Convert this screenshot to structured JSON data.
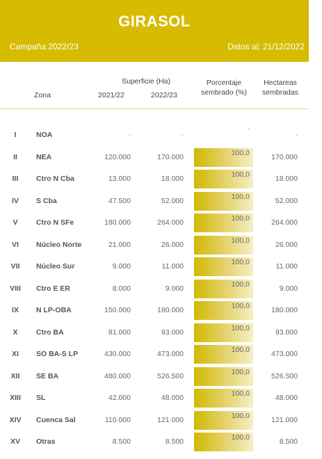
{
  "header": {
    "title": "GIRASOL",
    "campaign": "Campaña 2022/23",
    "date": "Datos al: 21/12/2022"
  },
  "columns": {
    "surface_group": "Superficie (Ha)",
    "zona": "Zona",
    "y2021": "2021/22",
    "y2022": "2022/23",
    "pct_line1": "Porcentaje",
    "pct_line2": "sembrado (%)",
    "ha_line1": "Hectareas",
    "ha_line2": "sembradas"
  },
  "accent_color": "#d7bb00",
  "rows": [
    {
      "num": "I",
      "zona": "NOA",
      "v2021": "-",
      "v2022": "-",
      "pct": "-",
      "pct_fill": 0,
      "ha": "-"
    },
    {
      "num": "II",
      "zona": "NEA",
      "v2021": "120.000",
      "v2022": "170.000",
      "pct": "100,0",
      "pct_fill": 100,
      "ha": "170.000"
    },
    {
      "num": "III",
      "zona": "Ctro N Cba",
      "v2021": "13.000",
      "v2022": "18.000",
      "pct": "100,0",
      "pct_fill": 100,
      "ha": "18.000"
    },
    {
      "num": "IV",
      "zona": "S Cba",
      "v2021": "47.500",
      "v2022": "52.000",
      "pct": "100,0",
      "pct_fill": 100,
      "ha": "52.000"
    },
    {
      "num": "V",
      "zona": "Ctro N SFe",
      "v2021": "180.000",
      "v2022": "264.000",
      "pct": "100,0",
      "pct_fill": 100,
      "ha": "264.000"
    },
    {
      "num": "VI",
      "zona": "Núcleo Norte",
      "v2021": "21.000",
      "v2022": "26.000",
      "pct": "100,0",
      "pct_fill": 100,
      "ha": "26.000"
    },
    {
      "num": "VII",
      "zona": "Núcleo Sur",
      "v2021": "9.000",
      "v2022": "11.000",
      "pct": "100,0",
      "pct_fill": 100,
      "ha": "11.000"
    },
    {
      "num": "VIII",
      "zona": "Ctro E ER",
      "v2021": "8.000",
      "v2022": "9.000",
      "pct": "100,0",
      "pct_fill": 100,
      "ha": "9.000"
    },
    {
      "num": "IX",
      "zona": "N LP-OBA",
      "v2021": "150.000",
      "v2022": "180.000",
      "pct": "100,0",
      "pct_fill": 100,
      "ha": "180.000"
    },
    {
      "num": "X",
      "zona": "Ctro BA",
      "v2021": "81.000",
      "v2022": "93.000",
      "pct": "100,0",
      "pct_fill": 100,
      "ha": "93.000"
    },
    {
      "num": "XI",
      "zona": "SO BA-S LP",
      "v2021": "430.000",
      "v2022": "473.000",
      "pct": "100,0",
      "pct_fill": 100,
      "ha": "473.000"
    },
    {
      "num": "XII",
      "zona": "SE BA",
      "v2021": "480.000",
      "v2022": "526.500",
      "pct": "100,0",
      "pct_fill": 100,
      "ha": "526.500"
    },
    {
      "num": "XIII",
      "zona": "SL",
      "v2021": "42.000",
      "v2022": "48.000",
      "pct": "100,0",
      "pct_fill": 100,
      "ha": "48.000"
    },
    {
      "num": "XIV",
      "zona": "Cuenca Sal",
      "v2021": "110.000",
      "v2022": "121.000",
      "pct": "100,0",
      "pct_fill": 100,
      "ha": "121.000"
    },
    {
      "num": "XV",
      "zona": "Otras",
      "v2021": "8.500",
      "v2022": "8.500",
      "pct": "100,0",
      "pct_fill": 100,
      "ha": "8.500"
    }
  ]
}
